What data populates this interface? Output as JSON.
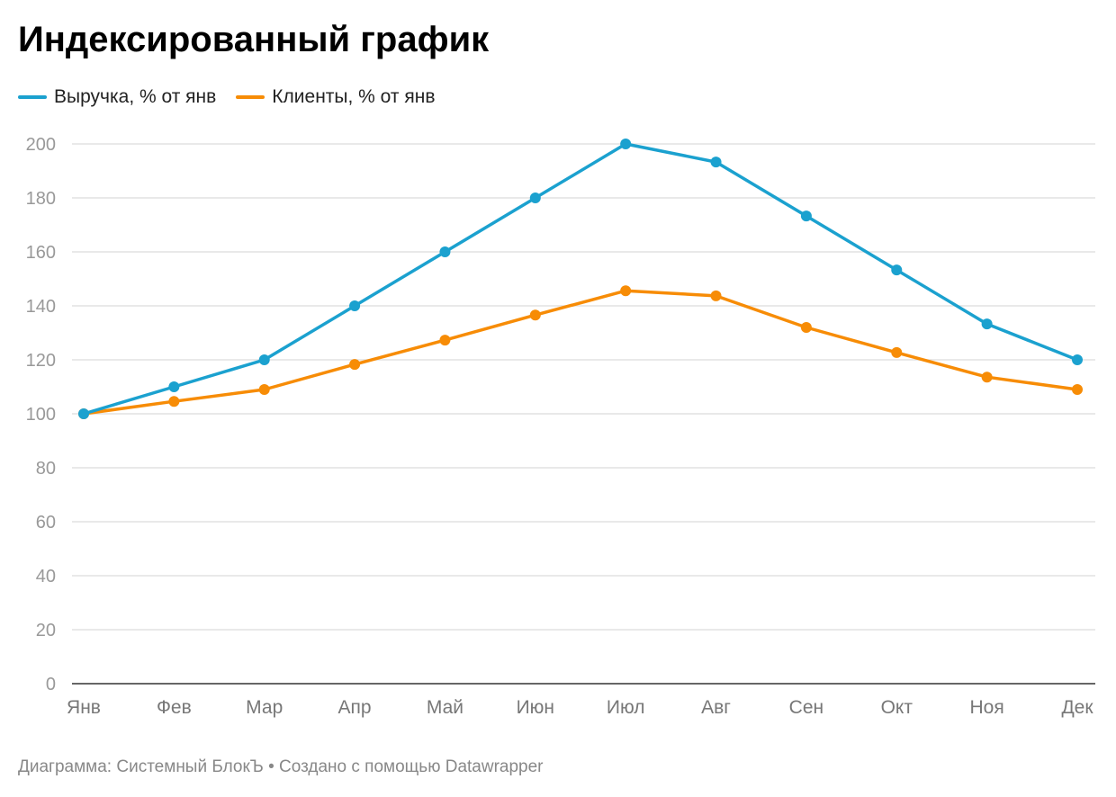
{
  "title": "Индексированный график",
  "footer": "Диаграмма: Системный БлокЪ • Создано с помощью Datawrapper",
  "chart_data": {
    "type": "line",
    "title": "Индексированный график",
    "categories": [
      "Янв",
      "Фев",
      "Мар",
      "Апр",
      "Май",
      "Июн",
      "Июл",
      "Авг",
      "Сен",
      "Окт",
      "Ноя",
      "Дек"
    ],
    "ylim": [
      0,
      200
    ],
    "yticks": [
      0,
      20,
      40,
      60,
      80,
      100,
      120,
      140,
      160,
      180,
      200
    ],
    "grid": true,
    "legend_placement": "top-left",
    "series": [
      {
        "name": "Выручка, % от янв",
        "color": "#1ba1cf",
        "values": [
          100,
          110,
          120,
          140,
          160,
          180,
          200,
          193.3,
          173.3,
          153.3,
          133.3,
          120
        ]
      },
      {
        "name": "Клиенты, % от янв",
        "color": "#f78c06",
        "values": [
          100,
          104.6,
          109,
          118.3,
          127.3,
          136.6,
          145.6,
          143.7,
          132,
          122.7,
          113.6,
          109
        ]
      }
    ]
  }
}
